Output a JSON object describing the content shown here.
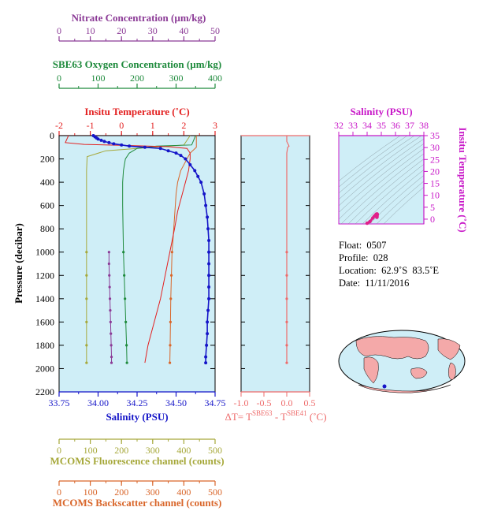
{
  "colors": {
    "panel_bg": "#cfeef7",
    "nitrate": "#8b3a96",
    "oxygen": "#1e8a3c",
    "temperature": "#e32020",
    "salinity": "#1515c8",
    "fluorescence": "#a6a83a",
    "backscatter": "#d9662a",
    "delta_t": "#ee6b6b",
    "ts_axis": "#c818c8",
    "ts_points": "#e0208a",
    "land": "#f4a9a9"
  },
  "labels": {
    "nitrate_axis": "Nitrate Concentration (µm/kg)",
    "oxygen_axis": "SBE63 Oxygen Concentration (µm/kg)",
    "temperature_axis": "Insitu Temperature (˚C)",
    "salinity_axis": "Salinity (PSU)",
    "pressure_axis": "Pressure (decibar)",
    "fluorescence_axis": "MCOMS Fluorescence channel (counts)",
    "backscatter_axis": "MCOMS Backscatter channel (counts)",
    "delta_t_main": "ΔT= T",
    "delta_t_sup1": "SBE63",
    "delta_t_mid": " - T",
    "delta_t_sup2": "SBE41",
    "delta_t_end": " (˚C)",
    "ts_salinity_axis": "Salinity (PSU)",
    "ts_temp_axis": "Insitu Temperature (˚C)"
  },
  "info": {
    "float": "Float:  0507",
    "profile": "Profile:  028",
    "location": "Location:  62.9˚S  83.5˚E",
    "date": "Date:  11/11/2016"
  },
  "chart_data": [
    {
      "type": "line",
      "name": "main-profile",
      "ylabel": "Pressure (decibar)",
      "ylim": [
        2200,
        0
      ],
      "yticks": [
        0,
        200,
        400,
        600,
        800,
        1000,
        1200,
        1400,
        1600,
        1800,
        2000,
        2200
      ],
      "axes": {
        "salinity": {
          "label": "Salinity (PSU)",
          "range": [
            33.75,
            34.75
          ],
          "ticks": [
            "33.75",
            "34.00",
            "34.25",
            "34.50",
            "34.75"
          ]
        },
        "temperature": {
          "label": "Insitu Temperature (˚C)",
          "range": [
            -2,
            3
          ],
          "ticks": [
            "-2",
            "-1",
            "0",
            "1",
            "2",
            "3"
          ]
        },
        "oxygen": {
          "label": "SBE63 Oxygen Concentration (µm/kg)",
          "range": [
            0,
            400
          ],
          "ticks": [
            "0",
            "100",
            "200",
            "300",
            "400"
          ]
        },
        "nitrate": {
          "label": "Nitrate Concentration (µm/kg)",
          "range": [
            0,
            50
          ],
          "ticks": [
            "0",
            "10",
            "20",
            "30",
            "40",
            "50"
          ]
        },
        "fluorescence": {
          "label": "MCOMS Fluorescence channel (counts)",
          "range": [
            0,
            500
          ],
          "ticks": [
            "0",
            "100",
            "200",
            "300",
            "400",
            "500"
          ]
        },
        "backscatter": {
          "label": "MCOMS Backscatter channel (counts)",
          "range": [
            0,
            500
          ],
          "ticks": [
            "0",
            "100",
            "200",
            "300",
            "400",
            "500"
          ]
        }
      },
      "series": [
        {
          "axis": "salinity",
          "points": [
            [
              33.97,
              0
            ],
            [
              33.98,
              10
            ],
            [
              33.99,
              20
            ],
            [
              34.0,
              30
            ],
            [
              34.02,
              40
            ],
            [
              34.04,
              50
            ],
            [
              34.07,
              60
            ],
            [
              34.1,
              70
            ],
            [
              34.15,
              80
            ],
            [
              34.2,
              90
            ],
            [
              34.3,
              100
            ],
            [
              34.4,
              110
            ],
            [
              34.45,
              130
            ],
            [
              34.5,
              150
            ],
            [
              34.53,
              170
            ],
            [
              34.56,
              200
            ],
            [
              34.59,
              250
            ],
            [
              34.62,
              300
            ],
            [
              34.64,
              350
            ],
            [
              34.66,
              400
            ],
            [
              34.68,
              500
            ],
            [
              34.69,
              600
            ],
            [
              34.7,
              700
            ],
            [
              34.705,
              800
            ],
            [
              34.71,
              900
            ],
            [
              34.71,
              1000
            ],
            [
              34.71,
              1100
            ],
            [
              34.71,
              1200
            ],
            [
              34.71,
              1300
            ],
            [
              34.71,
              1400
            ],
            [
              34.705,
              1500
            ],
            [
              34.7,
              1600
            ],
            [
              34.7,
              1700
            ],
            [
              34.695,
              1800
            ],
            [
              34.69,
              1900
            ],
            [
              34.69,
              1950
            ]
          ]
        },
        {
          "axis": "temperature",
          "points": [
            [
              -1.7,
              0
            ],
            [
              -1.75,
              30
            ],
            [
              -1.8,
              60
            ],
            [
              -1.2,
              75
            ],
            [
              0.2,
              85
            ],
            [
              1.5,
              95
            ],
            [
              2.1,
              110
            ],
            [
              2.2,
              150
            ],
            [
              2.2,
              200
            ],
            [
              2.15,
              300
            ],
            [
              2.05,
              400
            ],
            [
              1.95,
              500
            ],
            [
              1.8,
              650
            ],
            [
              1.7,
              800
            ],
            [
              1.55,
              1000
            ],
            [
              1.4,
              1200
            ],
            [
              1.25,
              1400
            ],
            [
              1.05,
              1600
            ],
            [
              0.85,
              1800
            ],
            [
              0.75,
              1950
            ]
          ]
        },
        {
          "axis": "oxygen",
          "points": [
            [
              350,
              0
            ],
            [
              345,
              40
            ],
            [
              340,
              80
            ],
            [
              250,
              90
            ],
            [
              200,
              110
            ],
            [
              180,
              150
            ],
            [
              170,
              200
            ],
            [
              165,
              300
            ],
            [
              163,
              400
            ],
            [
              163,
              600
            ],
            [
              164,
              800
            ],
            [
              165,
              1000
            ],
            [
              167,
              1200
            ],
            [
              169,
              1400
            ],
            [
              171,
              1600
            ],
            [
              173,
              1800
            ],
            [
              174,
              1950
            ]
          ]
        },
        {
          "axis": "nitrate",
          "points": [
            [
              16,
              1000
            ],
            [
              16,
              1100
            ],
            [
              16.1,
              1200
            ],
            [
              16.2,
              1300
            ],
            [
              16.3,
              1400
            ],
            [
              16.4,
              1500
            ],
            [
              16.5,
              1600
            ],
            [
              16.6,
              1700
            ],
            [
              16.7,
              1800
            ],
            [
              16.8,
              1900
            ],
            [
              16.8,
              1950
            ]
          ]
        },
        {
          "axis": "fluorescence",
          "points": [
            [
              420,
              0
            ],
            [
              400,
              80
            ],
            [
              300,
              100
            ],
            [
              150,
              130
            ],
            [
              90,
              180
            ],
            [
              88,
              300
            ],
            [
              88,
              500
            ],
            [
              88,
              800
            ],
            [
              88,
              1000
            ],
            [
              88,
              1200
            ],
            [
              88,
              1400
            ],
            [
              88,
              1600
            ],
            [
              88,
              1800
            ],
            [
              88,
              1950
            ]
          ]
        },
        {
          "axis": "backscatter",
          "points": [
            [
              440,
              0
            ],
            [
              440,
              100
            ],
            [
              420,
              150
            ],
            [
              410,
              200
            ],
            [
              400,
              250
            ],
            [
              390,
              300
            ],
            [
              380,
              400
            ],
            [
              375,
              500
            ],
            [
              370,
              700
            ],
            [
              365,
              900
            ],
            [
              362,
              1000
            ],
            [
              360,
              1200
            ],
            [
              358,
              1400
            ],
            [
              357,
              1600
            ],
            [
              356,
              1800
            ],
            [
              355,
              1950
            ]
          ]
        }
      ]
    },
    {
      "type": "line",
      "name": "delta-t",
      "xlabel": "ΔT= TSBE63 - TSBE41 (˚C)",
      "xlim": [
        -1.0,
        0.5
      ],
      "xticks": [
        "-1.0",
        "-0.5",
        "0.0",
        "0.5"
      ],
      "series": [
        {
          "name": "ΔT",
          "points": [
            [
              0,
              0
            ],
            [
              0,
              50
            ],
            [
              0.05,
              90
            ],
            [
              0.02,
              100
            ],
            [
              0,
              150
            ],
            [
              0,
              1000
            ],
            [
              0,
              1200
            ],
            [
              0,
              1400
            ],
            [
              0,
              1600
            ],
            [
              0,
              1800
            ],
            [
              0,
              1950
            ]
          ]
        }
      ]
    },
    {
      "type": "scatter",
      "name": "ts-diagram",
      "xlabel": "Salinity (PSU)",
      "ylabel": "Insitu Temperature (˚C)",
      "xlim": [
        32,
        38
      ],
      "ylim": [
        -2,
        35
      ],
      "xticks": [
        "32",
        "33",
        "34",
        "35",
        "36",
        "37",
        "38"
      ],
      "yticks": [
        "0",
        "5",
        "10",
        "15",
        "20",
        "25",
        "30",
        "35"
      ],
      "points": [
        [
          34.0,
          -1.7
        ],
        [
          34.2,
          -1.0
        ],
        [
          34.4,
          0.5
        ],
        [
          34.5,
          1.2
        ],
        [
          34.6,
          1.8
        ],
        [
          34.65,
          2.1
        ],
        [
          34.7,
          2.2
        ],
        [
          34.72,
          2.0
        ],
        [
          34.7,
          1.5
        ],
        [
          34.7,
          1.0
        ],
        [
          34.69,
          0.8
        ]
      ]
    },
    {
      "type": "map",
      "name": "world-location",
      "marker": {
        "lat": -62.9,
        "lon": 83.5
      }
    }
  ]
}
